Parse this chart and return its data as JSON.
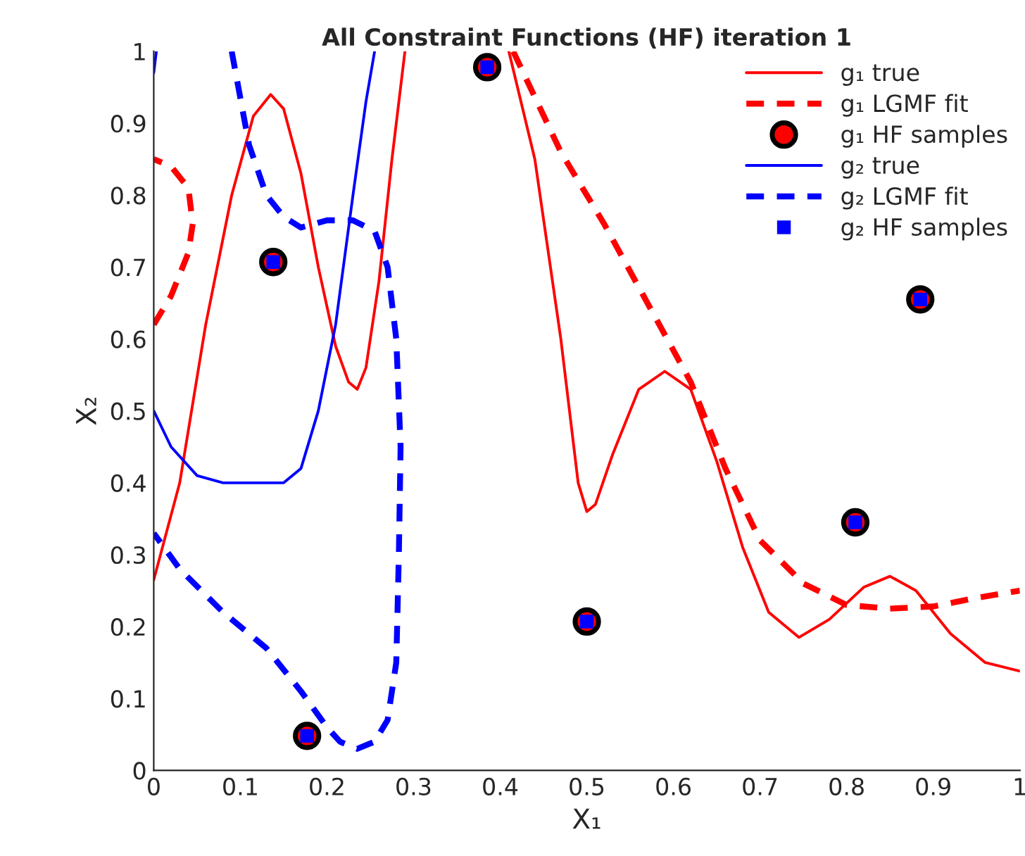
{
  "chart_data": {
    "type": "line",
    "title": "All Constraint Functions (HF) iteration 1",
    "xlabel": "X₁",
    "ylabel": "X₂",
    "xlim": [
      0,
      1
    ],
    "ylim": [
      0,
      1
    ],
    "xticks": [
      0,
      0.1,
      0.2,
      0.3,
      0.4,
      0.5,
      0.6,
      0.7,
      0.8,
      0.9,
      1
    ],
    "yticks": [
      0,
      0.1,
      0.2,
      0.3,
      0.4,
      0.5,
      0.6,
      0.7,
      0.8,
      0.9,
      1
    ],
    "grid": false,
    "legend": "top right",
    "series": [
      {
        "name": "g₁ true",
        "color": "#ff0000",
        "line_style": "solid",
        "marker": "none",
        "x": [
          0,
          0.03,
          0.06,
          0.09,
          0.115,
          0.135,
          0.15,
          0.17,
          0.19,
          0.21,
          0.225,
          0.235,
          0.245,
          0.26,
          0.275,
          0.29,
          null,
          0.41,
          0.44,
          0.47,
          0.49,
          0.5,
          0.51,
          0.53,
          0.56,
          0.59,
          0.62,
          0.65,
          0.68,
          0.71,
          0.745,
          0.78,
          0.82,
          0.85,
          0.88,
          0.92,
          0.96,
          1.0
        ],
        "values": [
          0.265,
          0.4,
          0.62,
          0.8,
          0.91,
          0.94,
          0.92,
          0.83,
          0.7,
          0.59,
          0.54,
          0.53,
          0.56,
          0.68,
          0.85,
          1.0,
          null,
          1.0,
          0.85,
          0.6,
          0.4,
          0.36,
          0.37,
          0.44,
          0.53,
          0.555,
          0.53,
          0.43,
          0.31,
          0.22,
          0.185,
          0.21,
          0.255,
          0.27,
          0.25,
          0.19,
          0.15,
          0.138
        ]
      },
      {
        "name": "g₁ LGMF fit",
        "color": "#ff0000",
        "line_style": "dashed",
        "marker": "none",
        "x": [
          0,
          0.02,
          0.04,
          0.045,
          0.04,
          0.02,
          0,
          null,
          0.415,
          0.47,
          0.52,
          0.57,
          0.62,
          0.66,
          0.7,
          0.75,
          0.8,
          0.85,
          0.9,
          0.95,
          1.0
        ],
        "values": [
          0.62,
          0.66,
          0.72,
          0.76,
          0.81,
          0.84,
          0.85,
          null,
          1.0,
          0.86,
          0.76,
          0.65,
          0.54,
          0.42,
          0.32,
          0.26,
          0.23,
          0.225,
          0.228,
          0.24,
          0.25
        ]
      },
      {
        "name": "g₁ HF samples",
        "type": "scatter",
        "color": "#ff0000",
        "marker": "circle",
        "x": [
          0.138,
          0.177,
          0.385,
          0.5,
          0.81,
          0.885
        ],
        "values": [
          0.707,
          0.048,
          0.978,
          0.207,
          0.345,
          0.655
        ]
      },
      {
        "name": "g₂ true",
        "color": "#0000ff",
        "line_style": "solid",
        "marker": "none",
        "x": [
          0,
          0.02,
          0.05,
          0.08,
          0.15,
          0.17,
          0.19,
          0.21,
          0.23,
          0.245,
          0.255,
          null,
          0,
          0.003
        ],
        "values": [
          0.5,
          0.45,
          0.41,
          0.4,
          0.4,
          0.42,
          0.5,
          0.62,
          0.8,
          0.93,
          1.0,
          null,
          0.97,
          1.0
        ]
      },
      {
        "name": "g₂ LGMF fit",
        "color": "#0000ff",
        "line_style": "dashed",
        "marker": "none",
        "x": [
          0.09,
          0.11,
          0.13,
          0.15,
          0.17,
          0.2,
          0.23,
          0.255,
          0.27,
          0.28,
          0.285,
          0.283,
          0.28,
          0.27,
          0.255,
          0.235,
          0.215,
          0.2,
          0.17,
          0.13,
          0.08,
          0.03,
          0
        ],
        "values": [
          1.0,
          0.87,
          0.8,
          0.77,
          0.755,
          0.765,
          0.765,
          0.75,
          0.7,
          0.6,
          0.45,
          0.3,
          0.15,
          0.07,
          0.04,
          0.03,
          0.04,
          0.06,
          0.11,
          0.17,
          0.22,
          0.28,
          0.33
        ]
      },
      {
        "name": "g₂ HF samples",
        "type": "scatter",
        "color": "#0000ff",
        "marker": "square",
        "x": [
          0.138,
          0.177,
          0.385,
          0.5,
          0.81,
          0.885
        ],
        "values": [
          0.707,
          0.048,
          0.978,
          0.207,
          0.345,
          0.655
        ]
      }
    ]
  }
}
